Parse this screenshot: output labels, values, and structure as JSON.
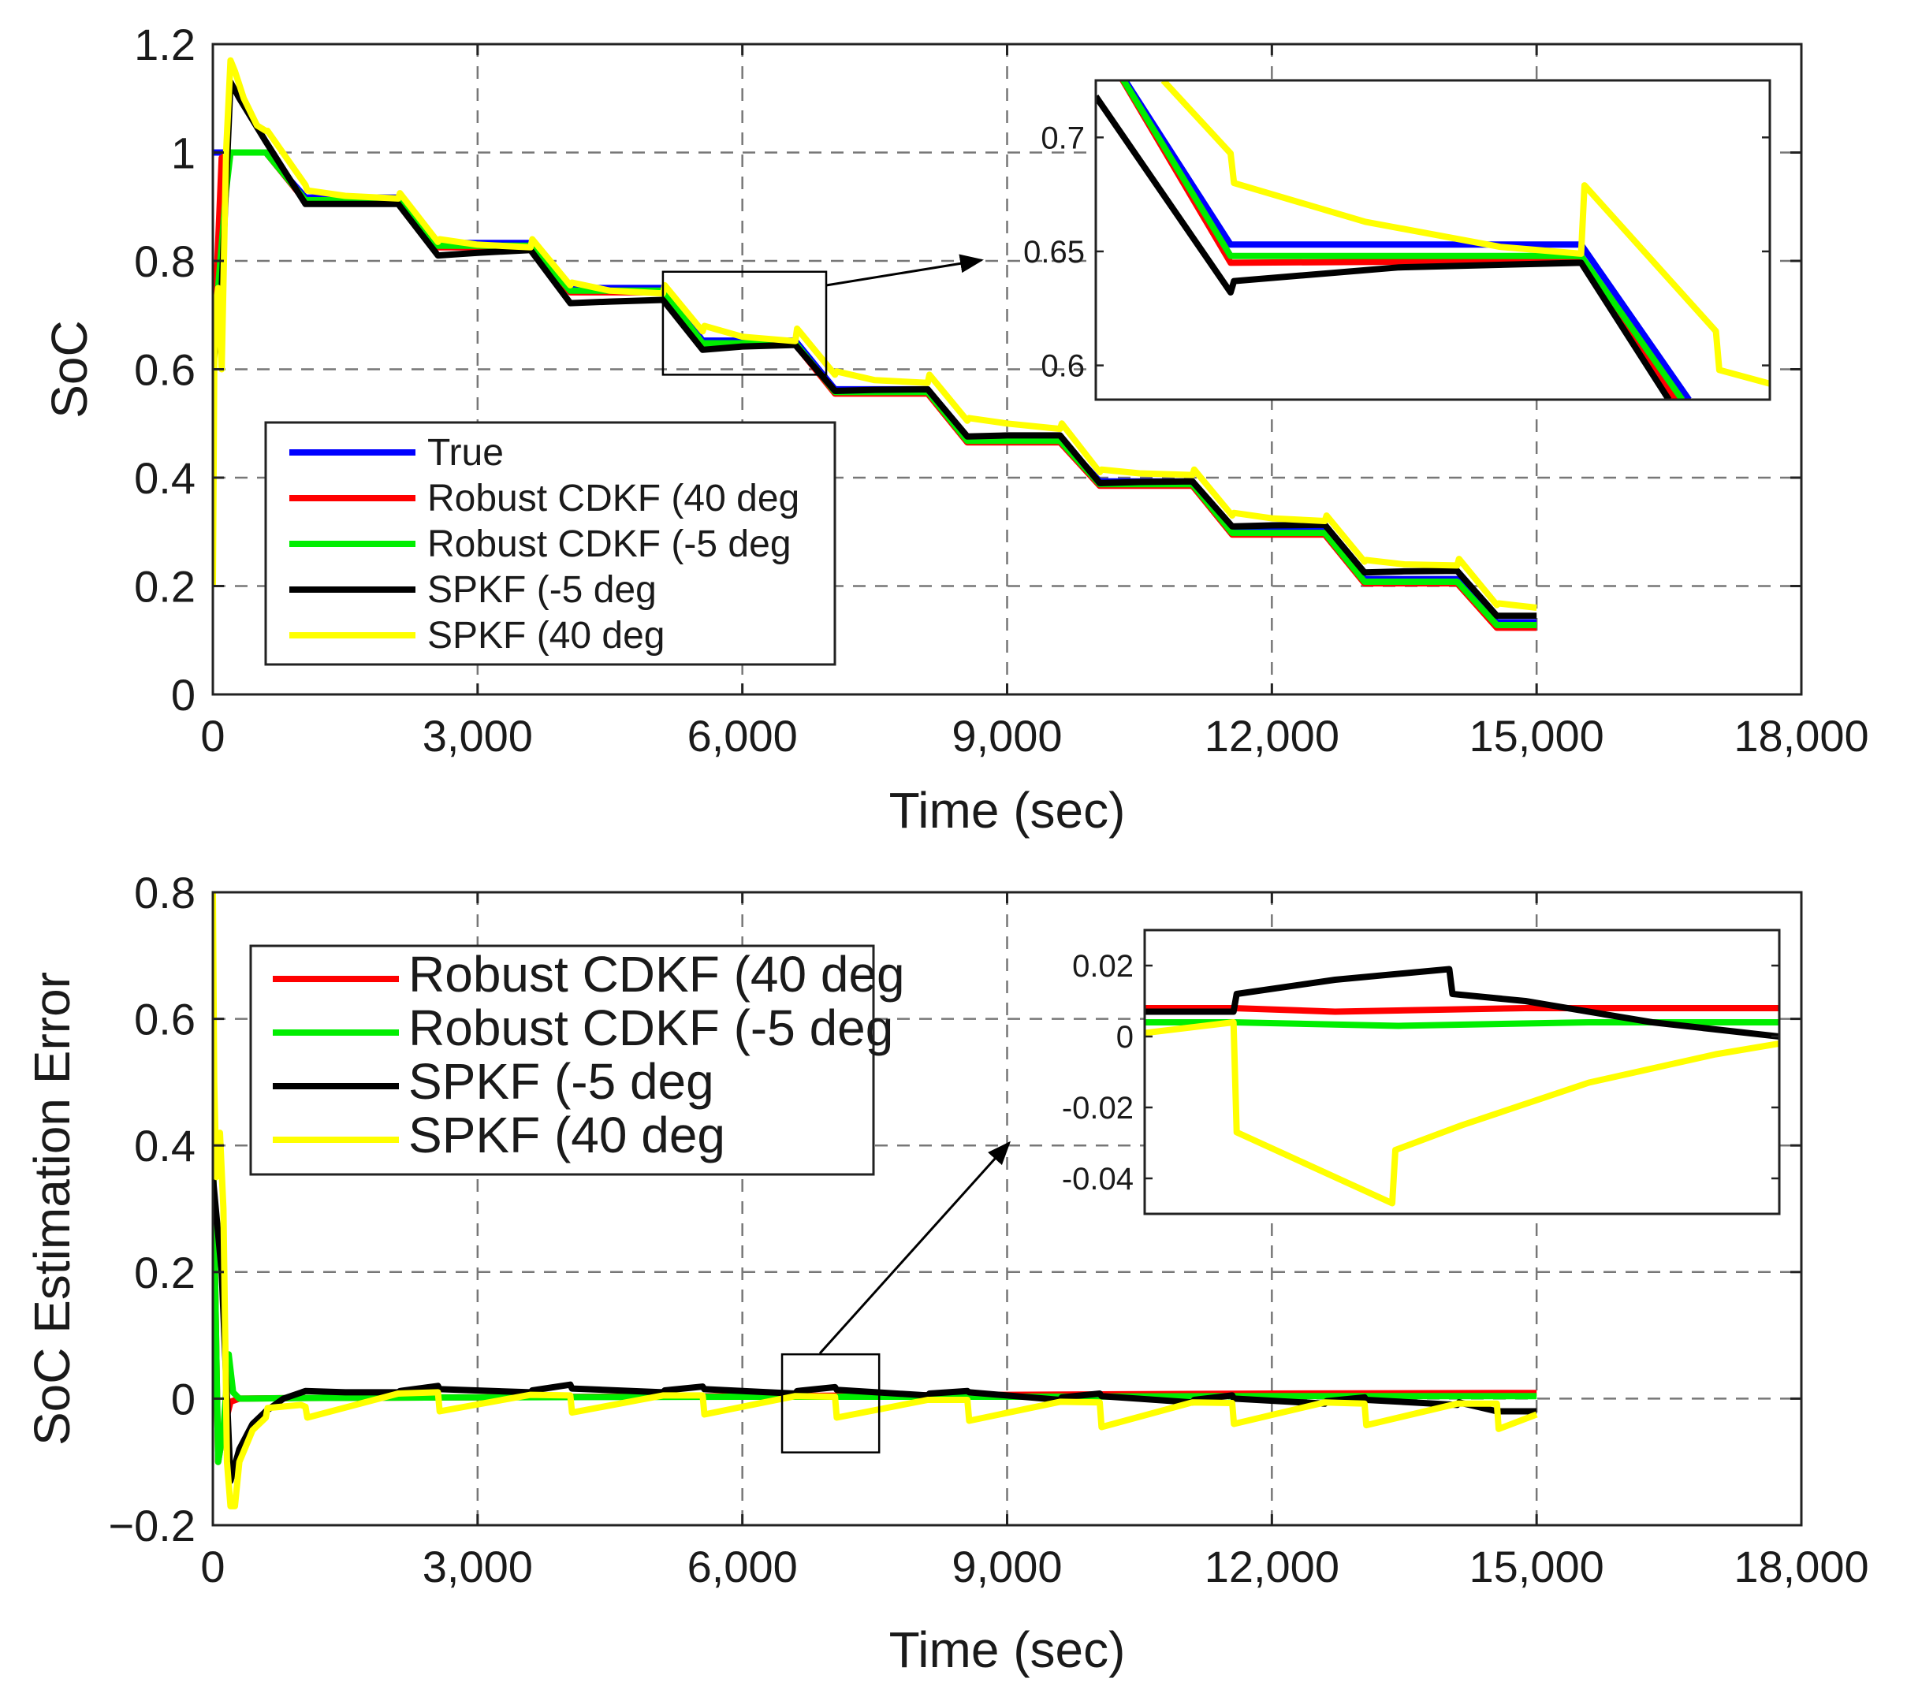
{
  "chart_data": [
    {
      "type": "line",
      "id": "soc",
      "title": "",
      "xlabel": "Time (sec)",
      "ylabel": "SoC",
      "xlim": [
        0,
        18000
      ],
      "ylim": [
        0,
        1.2
      ],
      "xticks": [
        0,
        3000,
        6000,
        9000,
        12000,
        15000,
        18000
      ],
      "xtick_labels": [
        "0",
        "3,000",
        "6,000",
        "9,000",
        "12,000",
        "15,000",
        "18,000"
      ],
      "yticks": [
        0,
        0.2,
        0.4,
        0.6,
        0.8,
        1.0,
        1.2
      ],
      "ytick_labels": [
        "0",
        "0.2",
        "0.4",
        "0.6",
        "0.8",
        "1",
        "1.2"
      ],
      "grid": true,
      "legend_position": "bottom-left",
      "series": [
        {
          "name": "True",
          "color": "#0000ff",
          "x": [
            0,
            100,
            200,
            600,
            1050,
            2100,
            2550,
            3600,
            4050,
            5100,
            5550,
            6600,
            7050,
            8100,
            8550,
            9600,
            10050,
            11100,
            11550,
            12600,
            13050,
            14100,
            14550,
            15000
          ],
          "y": [
            1.0,
            1.0,
            1.0,
            1.0,
            0.917,
            0.917,
            0.833,
            0.833,
            0.75,
            0.75,
            0.653,
            0.653,
            0.563,
            0.563,
            0.473,
            0.473,
            0.393,
            0.393,
            0.303,
            0.303,
            0.213,
            0.213,
            0.133,
            0.133
          ]
        },
        {
          "name": "Robust CDKF (40 deg",
          "color": "#ff0000",
          "x": [
            0,
            100,
            200,
            600,
            1050,
            2100,
            2550,
            3600,
            4050,
            5100,
            5550,
            6600,
            7050,
            8100,
            8550,
            9600,
            10050,
            11100,
            11550,
            12600,
            13050,
            14100,
            14550,
            15000
          ],
          "y": [
            0.6,
            0.99,
            1.0,
            1.0,
            0.91,
            0.91,
            0.825,
            0.825,
            0.742,
            0.742,
            0.646,
            0.646,
            0.555,
            0.555,
            0.465,
            0.465,
            0.385,
            0.385,
            0.295,
            0.295,
            0.205,
            0.205,
            0.123,
            0.123
          ]
        },
        {
          "name": "Robust CDKF (-5 deg",
          "color": "#00ee00",
          "x": [
            0,
            60,
            150,
            200,
            600,
            1050,
            2100,
            2550,
            3600,
            4050,
            5100,
            5550,
            6600,
            7050,
            8100,
            8550,
            9600,
            10050,
            11100,
            11550,
            12600,
            13050,
            14100,
            14550,
            15000
          ],
          "y": [
            0.6,
            0.75,
            0.93,
            1.0,
            1.0,
            0.912,
            0.912,
            0.828,
            0.828,
            0.745,
            0.745,
            0.648,
            0.648,
            0.558,
            0.558,
            0.468,
            0.468,
            0.388,
            0.388,
            0.298,
            0.298,
            0.208,
            0.208,
            0.128,
            0.128
          ]
        },
        {
          "name": "SPKF (-5 deg",
          "color": "#000000",
          "x": [
            0,
            100,
            200,
            300,
            450,
            600,
            1050,
            1500,
            2100,
            2550,
            3000,
            3600,
            4050,
            4500,
            5100,
            5550,
            6000,
            6600,
            7050,
            7500,
            8100,
            8550,
            9000,
            9600,
            10050,
            10500,
            11100,
            11550,
            12000,
            12600,
            13050,
            13500,
            14100,
            14550,
            15000
          ],
          "y": [
            0.6,
            0.75,
            1.13,
            1.1,
            1.06,
            1.02,
            0.905,
            0.905,
            0.905,
            0.81,
            0.815,
            0.82,
            0.722,
            0.725,
            0.728,
            0.636,
            0.642,
            0.645,
            0.56,
            0.562,
            0.563,
            0.476,
            0.478,
            0.478,
            0.39,
            0.392,
            0.393,
            0.31,
            0.312,
            0.313,
            0.225,
            0.227,
            0.228,
            0.145,
            0.145
          ]
        },
        {
          "name": "SPKF (40 deg",
          "color": "#ffff00",
          "x": [
            0,
            20,
            60,
            100,
            150,
            200,
            250,
            350,
            500,
            600,
            620,
            1050,
            1070,
            1500,
            2100,
            2120,
            2550,
            2570,
            3000,
            3600,
            3620,
            4050,
            4070,
            4500,
            5100,
            5120,
            5550,
            5570,
            6000,
            6600,
            6620,
            7050,
            7070,
            7500,
            8100,
            8120,
            8550,
            8570,
            9000,
            9600,
            9620,
            10050,
            10070,
            10500,
            11100,
            11120,
            11550,
            11570,
            12000,
            12600,
            12620,
            13050,
            13070,
            13500,
            14100,
            14120,
            14550,
            14570,
            15000
          ],
          "y": [
            0.2,
            0.7,
            0.75,
            0.6,
            1.0,
            1.17,
            1.15,
            1.1,
            1.05,
            1.04,
            1.04,
            0.94,
            0.93,
            0.92,
            0.915,
            0.925,
            0.835,
            0.84,
            0.83,
            0.825,
            0.84,
            0.755,
            0.76,
            0.745,
            0.74,
            0.755,
            0.67,
            0.68,
            0.66,
            0.652,
            0.675,
            0.59,
            0.596,
            0.58,
            0.575,
            0.59,
            0.505,
            0.51,
            0.5,
            0.49,
            0.5,
            0.41,
            0.415,
            0.408,
            0.405,
            0.415,
            0.33,
            0.335,
            0.325,
            0.32,
            0.33,
            0.245,
            0.248,
            0.24,
            0.238,
            0.25,
            0.165,
            0.168,
            0.16
          ]
        }
      ],
      "legend": [
        "True",
        "Robust CDKF (40 deg",
        "Robust CDKF (-5 deg",
        "SPKF (-5 deg",
        "SPKF (40 deg"
      ],
      "zoom_box": {
        "xlim": [
          5100,
          6950
        ],
        "ylim": [
          0.59,
          0.78
        ]
      },
      "inset": {
        "yticks": [
          0.6,
          0.65,
          0.7
        ],
        "ytick_labels": [
          "0.6",
          "0.65",
          "0.7"
        ],
        "ylim": [
          0.585,
          0.725
        ],
        "xlim": [
          0,
          100
        ],
        "series": [
          {
            "name": "True",
            "color": "#0000ff",
            "x": [
              0,
              20,
              72,
              88
            ],
            "y": [
              0.745,
              0.653,
              0.653,
              0.585
            ]
          },
          {
            "name": "Robust CDKF (40 deg",
            "color": "#ff0000",
            "x": [
              0,
              20,
              72,
              86
            ],
            "y": [
              0.745,
              0.645,
              0.646,
              0.585
            ]
          },
          {
            "name": "Robust CDKF (-5 deg",
            "color": "#00ee00",
            "x": [
              0,
              20,
              72,
              87
            ],
            "y": [
              0.745,
              0.648,
              0.648,
              0.585
            ]
          },
          {
            "name": "SPKF (-5 deg",
            "color": "#000000",
            "x": [
              0,
              20,
              20.5,
              45,
              72,
              85
            ],
            "y": [
              0.718,
              0.632,
              0.637,
              0.643,
              0.645,
              0.585
            ]
          },
          {
            "name": "SPKF (40 deg",
            "color": "#ffff00",
            "x": [
              10,
              20,
              20.5,
              40,
              60,
              72,
              72.5,
              92,
              92.5,
              100
            ],
            "y": [
              0.725,
              0.693,
              0.68,
              0.663,
              0.652,
              0.649,
              0.679,
              0.615,
              0.598,
              0.592
            ]
          }
        ]
      }
    },
    {
      "type": "line",
      "id": "error",
      "title": "",
      "xlabel": "Time (sec)",
      "ylabel": "SoC Estimation Error",
      "xlim": [
        0,
        18000
      ],
      "ylim": [
        -0.2,
        0.8
      ],
      "xticks": [
        0,
        3000,
        6000,
        9000,
        12000,
        15000,
        18000
      ],
      "xtick_labels": [
        "0",
        "3,000",
        "6,000",
        "9,000",
        "12,000",
        "15,000",
        "18,000"
      ],
      "yticks": [
        -0.2,
        0,
        0.2,
        0.4,
        0.6,
        0.8
      ],
      "ytick_labels": [
        "−0.2",
        "0",
        "0.2",
        "0.4",
        "0.6",
        "0.8"
      ],
      "grid": true,
      "legend_position": "top-left",
      "series": [
        {
          "name": "Robust CDKF (40 deg",
          "color": "#ff0000",
          "x": [
            0,
            60,
            120,
            200,
            300,
            1000,
            3000,
            6000,
            9000,
            12000,
            15000
          ],
          "y": [
            0.4,
            -0.1,
            -0.05,
            -0.005,
            0.0,
            0.001,
            0.002,
            0.004,
            0.006,
            0.008,
            0.009
          ]
        },
        {
          "name": "Robust CDKF (-5 deg",
          "color": "#00ee00",
          "x": [
            0,
            60,
            120,
            180,
            230,
            300,
            400,
            1000,
            3000,
            6000,
            9000,
            12000,
            15000
          ],
          "y": [
            0.4,
            -0.1,
            -0.05,
            0.07,
            0.01,
            0.0,
            0.0,
            0.001,
            0.002,
            0.003,
            0.003,
            0.004,
            0.004
          ]
        },
        {
          "name": "SPKF (-5 deg",
          "color": "#000000",
          "x": [
            0,
            100,
            200,
            300,
            450,
            600,
            800,
            1050,
            1500,
            2100,
            2120,
            2550,
            2570,
            3600,
            3620,
            4050,
            4070,
            5100,
            5120,
            5550,
            5570,
            6600,
            6620,
            7050,
            7070,
            8100,
            8120,
            8550,
            8570,
            9600,
            9620,
            10050,
            10070,
            11100,
            11120,
            11550,
            11570,
            12600,
            12620,
            13050,
            13070,
            14100,
            14120,
            14550,
            14570,
            15000
          ],
          "y": [
            0.35,
            0.2,
            -0.13,
            -0.08,
            -0.04,
            -0.02,
            0.0,
            0.012,
            0.01,
            0.01,
            0.012,
            0.02,
            0.015,
            0.01,
            0.013,
            0.022,
            0.016,
            0.01,
            0.013,
            0.019,
            0.015,
            0.008,
            0.012,
            0.018,
            0.014,
            0.005,
            0.008,
            0.012,
            0.01,
            -0.002,
            0.002,
            0.008,
            0.004,
            -0.006,
            -0.002,
            0.005,
            0.0,
            -0.008,
            -0.004,
            0.002,
            -0.002,
            -0.01,
            -0.006,
            -0.02,
            -0.02,
            -0.02
          ]
        },
        {
          "name": "SPKF (40 deg",
          "color": "#ffff00",
          "x": [
            0,
            15,
            40,
            80,
            120,
            160,
            200,
            250,
            300,
            450,
            600,
            620,
            1000,
            1050,
            1070,
            2100,
            2550,
            2570,
            3600,
            4050,
            4070,
            5100,
            5550,
            5570,
            6600,
            7050,
            7070,
            8100,
            8550,
            8570,
            9600,
            10050,
            10070,
            11100,
            11550,
            11570,
            12600,
            13050,
            13070,
            14100,
            14550,
            14570,
            15000
          ],
          "y": [
            0.8,
            0.5,
            0.35,
            0.42,
            0.3,
            -0.1,
            -0.17,
            -0.17,
            -0.1,
            -0.05,
            -0.03,
            -0.015,
            -0.01,
            -0.013,
            -0.03,
            0.008,
            0.01,
            -0.02,
            0.006,
            0.005,
            -0.022,
            0.005,
            0.005,
            -0.025,
            0.004,
            0.003,
            -0.03,
            -0.002,
            -0.002,
            -0.035,
            -0.005,
            -0.006,
            -0.045,
            -0.006,
            -0.007,
            -0.04,
            -0.006,
            -0.008,
            -0.042,
            -0.008,
            -0.008,
            -0.048,
            -0.025
          ]
        }
      ],
      "legend": [
        "Robust CDKF (40 deg",
        "Robust CDKF (-5 deg",
        "SPKF (-5 deg",
        "SPKF (40 deg"
      ],
      "zoom_box": {
        "xlim": [
          6450,
          7550
        ],
        "ylim": [
          -0.085,
          0.07
        ]
      },
      "inset": {
        "yticks": [
          -0.04,
          -0.02,
          0,
          0.02
        ],
        "ytick_labels": [
          "-0.04",
          "-0.02",
          "0",
          "0.02"
        ],
        "ylim": [
          -0.05,
          0.03
        ],
        "xlim": [
          0,
          100
        ],
        "series": [
          {
            "name": "Robust CDKF (40 deg",
            "color": "#ff0000",
            "x": [
              0,
              14,
              30,
              60,
              100
            ],
            "y": [
              0.008,
              0.008,
              0.007,
              0.008,
              0.008
            ]
          },
          {
            "name": "Robust CDKF (-5 deg",
            "color": "#00ee00",
            "x": [
              0,
              14,
              40,
              70,
              100
            ],
            "y": [
              0.004,
              0.004,
              0.003,
              0.004,
              0.004
            ]
          },
          {
            "name": "SPKF (-5 deg",
            "color": "#000000",
            "x": [
              0,
              14,
              14.5,
              30,
              48,
              48.5,
              60,
              80,
              100
            ],
            "y": [
              0.007,
              0.007,
              0.012,
              0.016,
              0.019,
              0.012,
              0.01,
              0.004,
              0.0
            ]
          },
          {
            "name": "SPKF (40 deg",
            "color": "#ffff00",
            "x": [
              0,
              14,
              14.5,
              39,
              39.5,
              50,
              60,
              70,
              80,
              90,
              100
            ],
            "y": [
              0.001,
              0.004,
              -0.027,
              -0.047,
              -0.032,
              -0.025,
              -0.019,
              -0.013,
              -0.009,
              -0.005,
              -0.002
            ]
          }
        ]
      }
    }
  ]
}
